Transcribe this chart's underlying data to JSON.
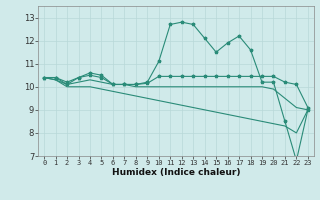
{
  "x": [
    0,
    1,
    2,
    3,
    4,
    5,
    6,
    7,
    8,
    9,
    10,
    11,
    12,
    13,
    14,
    15,
    16,
    17,
    18,
    19,
    20,
    21,
    22,
    23
  ],
  "line1": [
    10.4,
    10.4,
    10.2,
    10.4,
    10.6,
    10.5,
    10.1,
    10.1,
    10.1,
    10.2,
    11.1,
    12.7,
    12.8,
    12.7,
    12.1,
    11.5,
    11.9,
    12.2,
    11.6,
    10.2,
    10.2,
    8.5,
    6.8,
    9.0
  ],
  "line2": [
    10.4,
    10.4,
    10.1,
    10.4,
    10.5,
    10.4,
    10.1,
    10.1,
    10.1,
    10.15,
    10.45,
    10.45,
    10.45,
    10.45,
    10.45,
    10.45,
    10.45,
    10.45,
    10.45,
    10.45,
    10.45,
    10.2,
    10.1,
    9.1
  ],
  "line3": [
    10.4,
    10.3,
    10.1,
    10.2,
    10.3,
    10.2,
    10.1,
    10.1,
    10.0,
    10.0,
    10.0,
    10.0,
    10.0,
    10.0,
    10.0,
    10.0,
    10.0,
    10.0,
    10.0,
    10.0,
    9.9,
    9.5,
    9.1,
    9.0
  ],
  "line4": [
    10.4,
    10.3,
    10.0,
    10.0,
    10.0,
    9.9,
    9.8,
    9.7,
    9.6,
    9.5,
    9.4,
    9.3,
    9.2,
    9.1,
    9.0,
    8.9,
    8.8,
    8.7,
    8.6,
    8.5,
    8.4,
    8.3,
    8.0,
    9.0
  ],
  "color": "#2a8b78",
  "bg_color": "#d0eaea",
  "grid_color": "#b8d8d8",
  "xlabel": "Humidex (Indice chaleur)",
  "ylim": [
    7,
    13.5
  ],
  "xlim": [
    -0.5,
    23.5
  ],
  "yticks": [
    7,
    8,
    9,
    10,
    11,
    12,
    13
  ],
  "xticks": [
    0,
    1,
    2,
    3,
    4,
    5,
    6,
    7,
    8,
    9,
    10,
    11,
    12,
    13,
    14,
    15,
    16,
    17,
    18,
    19,
    20,
    21,
    22,
    23
  ]
}
